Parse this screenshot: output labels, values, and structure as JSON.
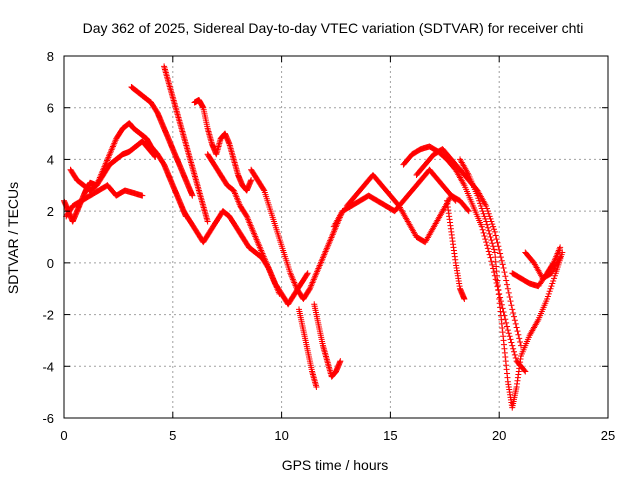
{
  "chart_data": {
    "type": "scatter",
    "title": "Day 362 of 2025, Sidereal Day-to-day VTEC variation (SDTVAR) for receiver chti",
    "xlabel": "GPS time / hours",
    "ylabel": "SDTVAR / TECUs",
    "xlim": [
      0,
      25
    ],
    "ylim": [
      -6,
      8
    ],
    "xticks": [
      0,
      5,
      10,
      15,
      20,
      25
    ],
    "yticks": [
      -6,
      -4,
      -2,
      0,
      2,
      4,
      6,
      8
    ],
    "xtick_labels": [
      "0",
      "5",
      "10",
      "15",
      "20",
      "25"
    ],
    "ytick_labels": [
      "-6",
      "-4",
      "-2",
      "0",
      "2",
      "4",
      "6",
      "8"
    ],
    "grid": true,
    "marker": "+",
    "colors": {
      "series": "#ff0000",
      "grid": "#a0a0a0",
      "frame": "#000000"
    },
    "series": [
      {
        "x": [
          0.0,
          0.2,
          0.4,
          0.6,
          0.8,
          1.0,
          1.2,
          1.5,
          1.8,
          2.1,
          2.4,
          2.7,
          3.0,
          3.2,
          3.5,
          3.8,
          4.0,
          4.3,
          4.6,
          4.8,
          5.0,
          5.2,
          5.4,
          5.6
        ],
        "y": [
          2.4,
          2.0,
          1.6,
          2.0,
          2.4,
          2.8,
          3.1,
          3.0,
          3.6,
          4.2,
          4.8,
          5.2,
          5.4,
          5.2,
          5.0,
          4.8,
          4.5,
          4.2,
          3.8,
          3.4,
          3.0,
          2.6,
          2.2,
          1.8
        ]
      },
      {
        "x": [
          0.1,
          0.4,
          0.8,
          1.2,
          1.6,
          2.0,
          2.4,
          2.8,
          3.2,
          3.6
        ],
        "y": [
          1.8,
          2.2,
          2.4,
          2.6,
          2.8,
          3.0,
          2.6,
          2.8,
          2.7,
          2.6
        ]
      },
      {
        "x": [
          0.3,
          0.6,
          0.9,
          1.2,
          1.5,
          1.8,
          2.1,
          2.4,
          2.7,
          3.0,
          3.3,
          3.6,
          3.9,
          4.2
        ],
        "y": [
          3.6,
          3.2,
          3.0,
          2.8,
          3.0,
          3.4,
          3.8,
          4.0,
          4.2,
          4.3,
          4.5,
          4.7,
          4.4,
          4.1
        ]
      },
      {
        "x": [
          3.1,
          3.4,
          3.7,
          4.0,
          4.3,
          4.5,
          4.7,
          4.9,
          5.1,
          5.3,
          5.5,
          5.7,
          5.9
        ],
        "y": [
          6.8,
          6.6,
          6.4,
          6.2,
          5.8,
          5.4,
          5.0,
          4.6,
          4.2,
          3.8,
          3.4,
          3.0,
          2.6
        ]
      },
      {
        "x": [
          4.6,
          4.8,
          5.0,
          5.2,
          5.4,
          5.6,
          5.8,
          6.0,
          6.2,
          6.4,
          6.6
        ],
        "y": [
          7.6,
          7.0,
          6.4,
          5.8,
          5.2,
          4.6,
          4.0,
          3.4,
          2.8,
          2.2,
          1.6
        ]
      },
      {
        "x": [
          5.5,
          5.8,
          6.1,
          6.4,
          6.7,
          7.0,
          7.3,
          7.6,
          7.9,
          8.2,
          8.5,
          8.8,
          9.1,
          9.4,
          9.7,
          10.0,
          10.3,
          10.6,
          10.9,
          11.2
        ],
        "y": [
          2.0,
          1.6,
          1.2,
          0.8,
          1.2,
          1.6,
          2.0,
          1.8,
          1.4,
          1.0,
          0.6,
          0.4,
          0.2,
          -0.2,
          -0.8,
          -1.2,
          -1.6,
          -1.2,
          -0.8,
          -0.4
        ]
      },
      {
        "x": [
          6.0,
          6.2,
          6.4,
          6.6,
          6.8,
          7.0,
          7.2,
          7.4,
          7.6,
          7.8,
          8.0,
          8.2,
          8.4,
          8.6
        ],
        "y": [
          6.2,
          6.3,
          6.0,
          5.2,
          4.6,
          4.2,
          4.8,
          5.0,
          4.6,
          4.0,
          3.4,
          3.0,
          2.8,
          3.2
        ]
      },
      {
        "x": [
          6.6,
          6.9,
          7.2,
          7.5,
          7.8,
          8.1,
          8.4,
          8.7,
          9.0,
          9.3,
          9.6,
          9.9
        ],
        "y": [
          4.2,
          3.8,
          3.4,
          3.0,
          2.8,
          2.2,
          1.8,
          1.2,
          0.6,
          0.0,
          -0.6,
          -1.2
        ]
      },
      {
        "x": [
          8.6,
          8.9,
          9.2,
          9.5,
          9.8,
          10.1,
          10.4,
          10.7,
          11.0,
          11.3,
          11.6,
          11.9,
          12.2,
          12.5,
          12.8
        ],
        "y": [
          3.6,
          3.2,
          2.8,
          2.0,
          1.2,
          0.4,
          -0.4,
          -1.0,
          -1.4,
          -1.0,
          -0.4,
          0.2,
          0.8,
          1.4,
          2.0
        ]
      },
      {
        "x": [
          10.8,
          11.0,
          11.2,
          11.4,
          11.6
        ],
        "y": [
          -1.8,
          -2.6,
          -3.4,
          -4.2,
          -4.8
        ]
      },
      {
        "x": [
          11.5,
          11.7,
          11.9,
          12.1,
          12.3,
          12.5,
          12.7
        ],
        "y": [
          -1.6,
          -2.4,
          -3.2,
          -3.8,
          -4.4,
          -4.2,
          -3.8
        ]
      },
      {
        "x": [
          12.4,
          12.8,
          13.2,
          13.6,
          14.0,
          14.4,
          14.8,
          15.2,
          15.6,
          16.0,
          16.4,
          16.8,
          17.2,
          17.6,
          18.0
        ],
        "y": [
          1.4,
          2.0,
          2.2,
          2.4,
          2.6,
          2.4,
          2.2,
          2.0,
          2.4,
          2.8,
          3.2,
          3.6,
          3.2,
          2.8,
          2.4
        ]
      },
      {
        "x": [
          13.0,
          13.4,
          13.8,
          14.2,
          14.6,
          15.0,
          15.4,
          15.8,
          16.2,
          16.6,
          17.0,
          17.4,
          17.8,
          18.2,
          18.6
        ],
        "y": [
          2.2,
          2.6,
          3.0,
          3.4,
          3.0,
          2.6,
          2.2,
          1.6,
          1.0,
          0.8,
          1.4,
          2.0,
          2.6,
          2.4,
          2.0
        ]
      },
      {
        "x": [
          15.6,
          16.0,
          16.4,
          16.8,
          17.2,
          17.6,
          18.0,
          18.4,
          18.8,
          19.2,
          19.6,
          20.0,
          20.4,
          20.8,
          21.2
        ],
        "y": [
          3.8,
          4.2,
          4.4,
          4.5,
          4.3,
          4.0,
          3.6,
          3.0,
          2.2,
          1.4,
          0.2,
          -1.2,
          -2.6,
          -3.8,
          -4.2
        ]
      },
      {
        "x": [
          16.2,
          16.6,
          17.0,
          17.4,
          17.8,
          18.2,
          18.6,
          19.0,
          19.4,
          19.8,
          20.2,
          20.6,
          21.0
        ],
        "y": [
          3.4,
          3.8,
          4.2,
          4.4,
          4.0,
          3.6,
          3.2,
          2.8,
          2.2,
          1.2,
          -0.2,
          -1.8,
          -3.2
        ]
      },
      {
        "x": [
          17.6,
          17.8,
          18.0,
          18.2,
          18.4
        ],
        "y": [
          2.4,
          1.2,
          0.0,
          -1.0,
          -1.4
        ]
      },
      {
        "x": [
          18.2,
          18.6,
          19.0,
          19.4,
          19.8,
          20.0,
          20.2,
          20.4,
          20.6,
          20.8,
          21.0,
          21.4,
          21.8,
          22.2,
          22.6,
          22.9
        ],
        "y": [
          4.0,
          3.4,
          2.6,
          1.6,
          0.4,
          -1.4,
          -3.0,
          -4.6,
          -5.6,
          -4.8,
          -3.6,
          -2.8,
          -2.2,
          -1.4,
          -0.4,
          0.4
        ]
      },
      {
        "x": [
          20.6,
          21.0,
          21.4,
          21.8,
          22.2,
          22.5,
          22.8
        ],
        "y": [
          -0.4,
          -0.6,
          -0.8,
          -0.9,
          -0.4,
          0.0,
          0.6
        ]
      },
      {
        "x": [
          21.2,
          21.6,
          22.0,
          22.4,
          22.8
        ],
        "y": [
          0.4,
          0.0,
          -0.6,
          -0.4,
          0.2
        ]
      }
    ]
  }
}
